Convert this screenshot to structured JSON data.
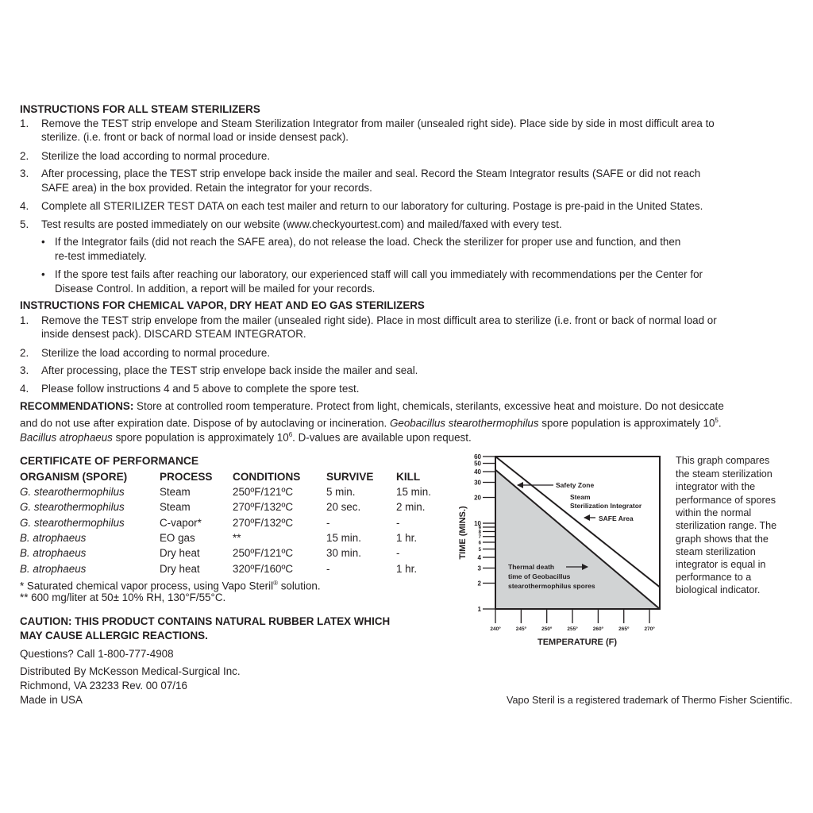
{
  "steam": {
    "heading": "INSTRUCTIONS FOR ALL STEAM STERILIZERS",
    "items": [
      {
        "num": "1.",
        "lines": [
          "Remove the TEST strip envelope and Steam Sterilization Integrator from mailer (unsealed right side). Place side by side in most difficult area to",
          "sterilize. (i.e. front or back of normal load or inside densest pack)."
        ]
      },
      {
        "num": "2.",
        "lines": [
          "Sterilize the load according to normal procedure."
        ]
      },
      {
        "num": "3.",
        "lines": [
          "After processing, place the TEST strip envelope back inside the mailer and seal. Record the Steam Integrator results (SAFE or did not reach",
          "SAFE area) in the box provided. Retain the integrator for your records."
        ]
      },
      {
        "num": "4.",
        "lines": [
          "Complete all STERILIZER TEST DATA on each test mailer and return to our laboratory for culturing. Postage is pre-paid in the United States."
        ]
      },
      {
        "num": "5.",
        "lines": [
          "Test results are posted immediately on our website (www.checkyourtest.com) and mailed/faxed with every test."
        ]
      }
    ],
    "bullets": [
      {
        "lines": [
          "If the Integrator fails (did not reach the SAFE area), do not release the load. Check the sterilizer for proper use and function, and then",
          "re-test immediately."
        ]
      },
      {
        "lines": [
          "If the spore test fails after reaching our laboratory, our experienced staff will call you immediately with recommendations per the Center for",
          "Disease Control. In addition, a report will be mailed for your records."
        ]
      }
    ]
  },
  "chemical": {
    "heading": "INSTRUCTIONS FOR CHEMICAL VAPOR, DRY HEAT AND EO GAS STERILIZERS",
    "items": [
      {
        "num": "1.",
        "lines": [
          "Remove the TEST strip envelope from the mailer (unsealed right side). Place in most difficult area to sterilize (i.e. front or back of normal load or",
          "inside densest pack). DISCARD STEAM INTEGRATOR."
        ]
      },
      {
        "num": "2.",
        "lines": [
          "Sterilize the load according to normal procedure."
        ]
      },
      {
        "num": "3.",
        "lines": [
          "After processing, place the TEST strip envelope back inside the mailer and seal."
        ]
      },
      {
        "num": "4.",
        "lines": [
          "Please follow instructions 4 and 5 above to complete the spore test."
        ]
      }
    ]
  },
  "recommendations": {
    "label": "RECOMMENDATIONS:",
    "line1": " Store at controlled room temperature. Protect from light, chemicals, sterilants, excessive heat and moisture. Do not desiccate",
    "line2a": "and do not use after expiration date. Dispose of by autoclaving or incineration. ",
    "line2_italic": "Geobacillus stearothermophilus",
    "line2b": " spore population is approximately 10",
    "line2_sup": "5",
    "line2c": ".",
    "line3_italic": "Bacillus atrophaeus",
    "line3a": " spore population is approximately 10",
    "line3_sup": "6",
    "line3b": ". D-values are available upon request."
  },
  "certificate": {
    "heading": "CERTIFICATE OF PERFORMANCE",
    "columns": [
      "ORGANISM (SPORE)",
      "PROCESS",
      "CONDITIONS",
      "SURVIVE",
      "KILL"
    ],
    "rows": [
      [
        "G. stearothermophilus",
        "Steam",
        "250ºF/121ºC",
        "5 min.",
        "15 min."
      ],
      [
        "G. stearothermophilus",
        "Steam",
        "270ºF/132ºC",
        "20 sec.",
        "2 min."
      ],
      [
        "G. stearothermophilus",
        "C-vapor*",
        "270ºF/132ºC",
        "-",
        "-"
      ],
      [
        "B. atrophaeus",
        "EO gas",
        "**",
        "15 min.",
        "1 hr."
      ],
      [
        "B. atrophaeus",
        "Dry heat",
        "250ºF/121ºC",
        "30 min.",
        "-"
      ],
      [
        "B. atrophaeus",
        "Dry heat",
        "320ºF/160ºC",
        "-",
        "1 hr."
      ]
    ],
    "footnote1a": "* Saturated chemical vapor process, using Vapo Steril",
    "footnote1_sup": "®",
    "footnote1b": " solution.",
    "footnote2": "** 600 mg/liter at 50± 10% RH, 130°F/55°C."
  },
  "caution": [
    "CAUTION: THIS PRODUCT CONTAINS NATURAL RUBBER LATEX WHICH",
    "MAY CAUSE ALLERGIC REACTIONS."
  ],
  "questions": "Questions? Call 1-800-777-4908",
  "distributor": [
    "Distributed By McKesson Medical-Surgical Inc.",
    "Richmond, VA 23233  Rev. 00  07/16",
    "Made in USA"
  ],
  "trademark": "Vapo Steril is a registered trademark of Thermo Fisher Scientific.",
  "graph_description": [
    "This graph compares",
    "the steam sterilization",
    "integrator with the",
    "performance of spores",
    "within the normal",
    "sterilization range. The",
    "graph shows that the",
    "steam sterilization",
    "integrator is equal in",
    "performance to a",
    "biological indicator."
  ],
  "chart_data": {
    "type": "line",
    "xlabel": "TEMPERATURE (F)",
    "ylabel": "TIME (MINS.)",
    "y_scale": "log",
    "xlim": [
      240,
      272
    ],
    "ylim": [
      1,
      60
    ],
    "x_ticks": [
      240,
      245,
      250,
      255,
      260,
      265,
      270
    ],
    "x_tick_labels": [
      "240º",
      "245º",
      "250º",
      "255º",
      "260º",
      "265º",
      "270º"
    ],
    "y_ticks": [
      1,
      2,
      3,
      4,
      5,
      6,
      7,
      8,
      9,
      10,
      20,
      30,
      40,
      50,
      60
    ],
    "series": [
      {
        "name": "Steam Sterilization Integrator",
        "x": [
          240,
          272
        ],
        "y": [
          60,
          1.8
        ],
        "fill": "none"
      },
      {
        "name": "Thermal death time of Geobacillus stearothermophilus spores",
        "x": [
          240,
          272
        ],
        "y": [
          42,
          1
        ],
        "fill": "#d1d3d4"
      }
    ],
    "annotations": [
      "Safety Zone",
      "Steam",
      "Sterilization Integrator",
      "SAFE Area",
      "Thermal death",
      "time of Geobacillus",
      "stearothermophilus spores"
    ],
    "grid": false
  }
}
